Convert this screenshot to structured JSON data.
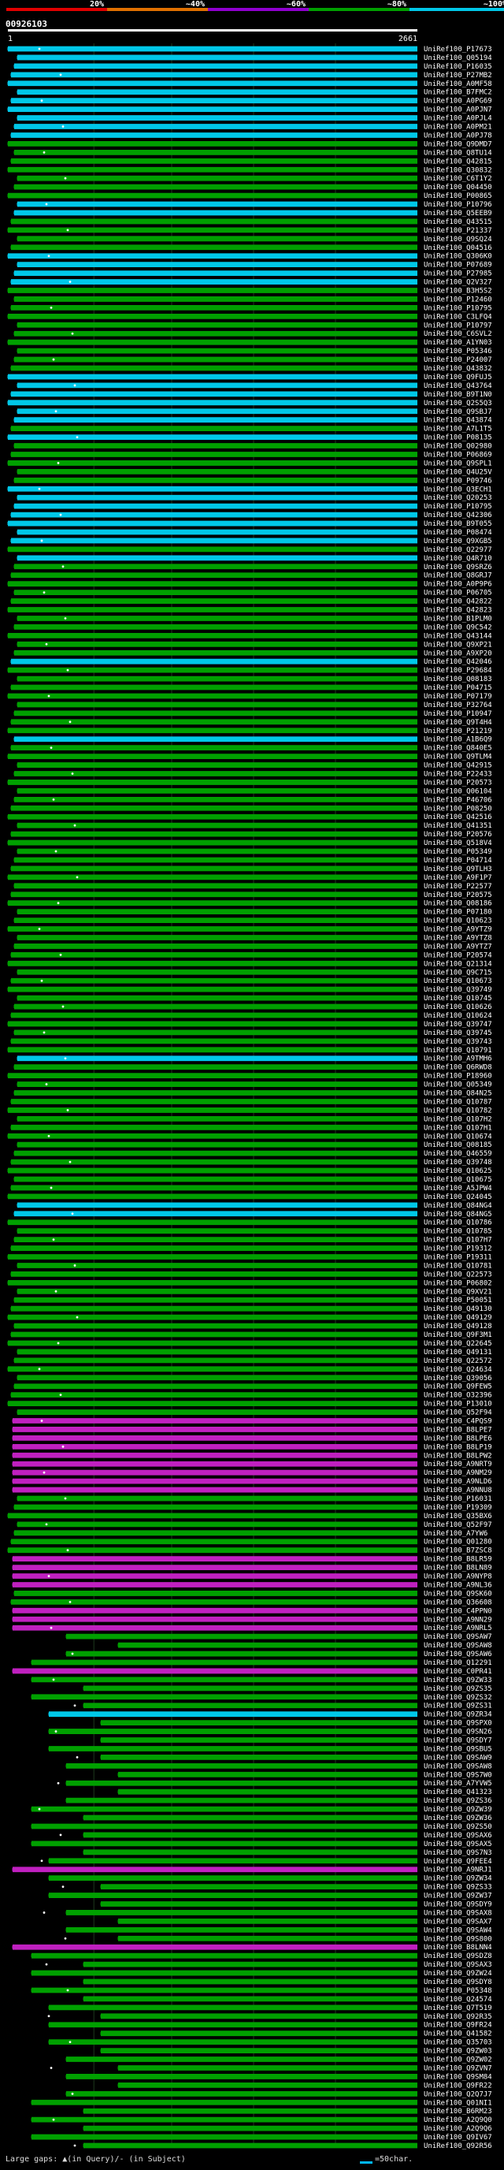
{
  "title": "00926103",
  "legend": {
    "labels": [
      "20%",
      "~40%",
      "~60%",
      "~80%",
      "~100%"
    ],
    "colors": [
      "#e00000",
      "#e07000",
      "#9000d0",
      "#00a000",
      "#00c8e8"
    ]
  },
  "ruler": {
    "start": "1",
    "end": "2661"
  },
  "footer": {
    "gaps_text": "Large gaps: ▲(in Query)/- (in Subject)",
    "scale_text": "=50char."
  },
  "chart_data": {
    "type": "alignment-overview",
    "title": "00926103",
    "query_length": 2661,
    "identity_colors": {
      "green": "#00a000",
      "cyan": "#00c8e8",
      "magenta": "#c020c0"
    },
    "hits": [
      {
        "id": "UniRef100_P17673",
        "color": "cyan"
      },
      {
        "id": "UniRef100_Q05194",
        "color": "cyan"
      },
      {
        "id": "UniRef100_P16035",
        "color": "cyan"
      },
      {
        "id": "UniRef100_P27MB2",
        "color": "cyan"
      },
      {
        "id": "UniRef100_A0MF58",
        "color": "cyan"
      },
      {
        "id": "UniRef100_B7FMC2",
        "color": "cyan"
      },
      {
        "id": "UniRef100_A0PG69",
        "color": "cyan"
      },
      {
        "id": "UniRef100_A0PJN7",
        "color": "cyan"
      },
      {
        "id": "UniRef100_A0PJL4",
        "color": "cyan"
      },
      {
        "id": "UniRef100_A0PM21",
        "color": "cyan"
      },
      {
        "id": "UniRef100_A0PJ78",
        "color": "cyan"
      },
      {
        "id": "UniRef100_Q9DMD7",
        "color": "green"
      },
      {
        "id": "UniRef100_Q8TU14",
        "color": "green"
      },
      {
        "id": "UniRef100_Q42815",
        "color": "green"
      },
      {
        "id": "UniRef100_Q30832",
        "color": "green"
      },
      {
        "id": "UniRef100_C6T1Y2",
        "color": "green"
      },
      {
        "id": "UniRef100_Q04450",
        "color": "green"
      },
      {
        "id": "UniRef100_P00865",
        "color": "green"
      },
      {
        "id": "UniRef100_P10796",
        "color": "cyan"
      },
      {
        "id": "UniRef100_Q5EEB9",
        "color": "cyan"
      },
      {
        "id": "UniRef100_Q43515",
        "color": "green"
      },
      {
        "id": "UniRef100_P21337",
        "color": "green"
      },
      {
        "id": "UniRef100_Q9SQ24",
        "color": "green"
      },
      {
        "id": "UniRef100_Q04516",
        "color": "green"
      },
      {
        "id": "UniRef100_Q306K0",
        "color": "cyan"
      },
      {
        "id": "UniRef100_P07689",
        "color": "cyan"
      },
      {
        "id": "UniRef100_P27985",
        "color": "cyan"
      },
      {
        "id": "UniRef100_Q2V327",
        "color": "cyan"
      },
      {
        "id": "UniRef100_B3H5S2",
        "color": "green"
      },
      {
        "id": "UniRef100_P12460",
        "color": "green"
      },
      {
        "id": "UniRef100_P10795",
        "color": "green"
      },
      {
        "id": "UniRef100_C3LFQ4",
        "color": "green"
      },
      {
        "id": "UniRef100_P10797",
        "color": "green"
      },
      {
        "id": "UniRef100_C6SVL2",
        "color": "green"
      },
      {
        "id": "UniRef100_A1YN03",
        "color": "green"
      },
      {
        "id": "UniRef100_P05346",
        "color": "green"
      },
      {
        "id": "UniRef100_P24007",
        "color": "green"
      },
      {
        "id": "UniRef100_Q43832",
        "color": "green"
      },
      {
        "id": "UniRef100_Q9FUJ5",
        "color": "cyan"
      },
      {
        "id": "UniRef100_Q43764",
        "color": "cyan"
      },
      {
        "id": "UniRef100_B9T1N0",
        "color": "cyan"
      },
      {
        "id": "UniRef100_Q2S5Q3",
        "color": "cyan"
      },
      {
        "id": "UniRef100_Q9SBJ7",
        "color": "cyan"
      },
      {
        "id": "UniRef100_Q43874",
        "color": "cyan"
      },
      {
        "id": "UniRef100_A7L1T5",
        "color": "green"
      },
      {
        "id": "UniRef100_P08135",
        "color": "cyan"
      },
      {
        "id": "UniRef100_Q02980",
        "color": "green"
      },
      {
        "id": "UniRef100_P06869",
        "color": "green"
      },
      {
        "id": "UniRef100_Q9SPL1",
        "color": "green"
      },
      {
        "id": "UniRef100_Q4U25V",
        "color": "green"
      },
      {
        "id": "UniRef100_P09746",
        "color": "green"
      },
      {
        "id": "UniRef100_Q3ECH1",
        "color": "cyan"
      },
      {
        "id": "UniRef100_Q20253",
        "color": "cyan"
      },
      {
        "id": "UniRef100_P10795",
        "color": "cyan"
      },
      {
        "id": "UniRef100_Q42306",
        "color": "cyan"
      },
      {
        "id": "UniRef100_B9T055",
        "color": "cyan"
      },
      {
        "id": "UniRef100_P08474",
        "color": "cyan"
      },
      {
        "id": "UniRef100_Q9XGB5",
        "color": "cyan"
      },
      {
        "id": "UniRef100_Q22977",
        "color": "green"
      },
      {
        "id": "UniRef100_Q4R710",
        "color": "cyan"
      },
      {
        "id": "UniRef100_Q9SRZ6",
        "color": "green"
      },
      {
        "id": "UniRef100_Q8GRJ7",
        "color": "green"
      },
      {
        "id": "UniRef100_A0P9P6",
        "color": "green"
      },
      {
        "id": "UniRef100_P06705",
        "color": "green"
      },
      {
        "id": "UniRef100_Q42822",
        "color": "green"
      },
      {
        "id": "UniRef100_Q42823",
        "color": "green"
      },
      {
        "id": "UniRef100_B1PLM0",
        "color": "green"
      },
      {
        "id": "UniRef100_Q9C542",
        "color": "green"
      },
      {
        "id": "UniRef100_Q43144",
        "color": "green"
      },
      {
        "id": "UniRef100_Q9XP21",
        "color": "green"
      },
      {
        "id": "UniRef100_A9XP20",
        "color": "green"
      },
      {
        "id": "UniRef100_Q42046",
        "color": "cyan"
      },
      {
        "id": "UniRef100_P29684",
        "color": "green"
      },
      {
        "id": "UniRef100_Q08183",
        "color": "green"
      },
      {
        "id": "UniRef100_P04715",
        "color": "green"
      },
      {
        "id": "UniRef100_P07179",
        "color": "green"
      },
      {
        "id": "UniRef100_P32764",
        "color": "green"
      },
      {
        "id": "UniRef100_P10947",
        "color": "green"
      },
      {
        "id": "UniRef100_Q9T4H4",
        "color": "green"
      },
      {
        "id": "UniRef100_P21219",
        "color": "green"
      },
      {
        "id": "UniRef100_A1B6Q9",
        "color": "cyan"
      },
      {
        "id": "UniRef100_Q840E5",
        "color": "green"
      },
      {
        "id": "UniRef100_Q9TLM4",
        "color": "green"
      },
      {
        "id": "UniRef100_Q42915",
        "color": "green"
      },
      {
        "id": "UniRef100_P22433",
        "color": "green"
      },
      {
        "id": "UniRef100_P20573",
        "color": "green"
      },
      {
        "id": "UniRef100_Q06104",
        "color": "green"
      },
      {
        "id": "UniRef100_P46706",
        "color": "green"
      },
      {
        "id": "UniRef100_P08250",
        "color": "green"
      },
      {
        "id": "UniRef100_Q42516",
        "color": "green"
      },
      {
        "id": "UniRef100_Q41351",
        "color": "green"
      },
      {
        "id": "UniRef100_P20576",
        "color": "green"
      },
      {
        "id": "UniRef100_Q518V4",
        "color": "green"
      },
      {
        "id": "UniRef100_P05349",
        "color": "green"
      },
      {
        "id": "UniRef100_P04714",
        "color": "green"
      },
      {
        "id": "UniRef100_Q9TLH3",
        "color": "green"
      },
      {
        "id": "UniRef100_A9F1P7",
        "color": "green"
      },
      {
        "id": "UniRef100_P22577",
        "color": "green"
      },
      {
        "id": "UniRef100_P20575",
        "color": "green"
      },
      {
        "id": "UniRef100_Q08186",
        "color": "green"
      },
      {
        "id": "UniRef100_P07180",
        "color": "green"
      },
      {
        "id": "UniRef100_Q10623",
        "color": "green"
      },
      {
        "id": "UniRef100_A9YTZ9",
        "color": "green"
      },
      {
        "id": "UniRef100_A9YTZ8",
        "color": "green"
      },
      {
        "id": "UniRef100_A9YTZ7",
        "color": "green"
      },
      {
        "id": "UniRef100_P20574",
        "color": "green"
      },
      {
        "id": "UniRef100_Q21314",
        "color": "green"
      },
      {
        "id": "UniRef100_Q9C715",
        "color": "green"
      },
      {
        "id": "UniRef100_Q10673",
        "color": "green"
      },
      {
        "id": "UniRef100_Q39749",
        "color": "green"
      },
      {
        "id": "UniRef100_Q10745",
        "color": "green"
      },
      {
        "id": "UniRef100_Q10626",
        "color": "green"
      },
      {
        "id": "UniRef100_Q10624",
        "color": "green"
      },
      {
        "id": "UniRef100_Q39747",
        "color": "green"
      },
      {
        "id": "UniRef100_Q39745",
        "color": "green"
      },
      {
        "id": "UniRef100_Q39743",
        "color": "green"
      },
      {
        "id": "UniRef100_Q10791",
        "color": "green"
      },
      {
        "id": "UniRef100_A9TMH6",
        "color": "cyan"
      },
      {
        "id": "UniRef100_Q6RWD8",
        "color": "green"
      },
      {
        "id": "UniRef100_P18960",
        "color": "green"
      },
      {
        "id": "UniRef100_Q05349",
        "color": "green"
      },
      {
        "id": "UniRef100_Q84N25",
        "color": "green"
      },
      {
        "id": "UniRef100_Q10787",
        "color": "green"
      },
      {
        "id": "UniRef100_Q10782",
        "color": "green"
      },
      {
        "id": "UniRef100_Q107H2",
        "color": "green"
      },
      {
        "id": "UniRef100_Q107H1",
        "color": "green"
      },
      {
        "id": "UniRef100_Q10674",
        "color": "green"
      },
      {
        "id": "UniRef100_Q08185",
        "color": "green"
      },
      {
        "id": "UniRef100_Q46559",
        "color": "green"
      },
      {
        "id": "UniRef100_Q39748",
        "color": "green"
      },
      {
        "id": "UniRef100_Q10625",
        "color": "green"
      },
      {
        "id": "UniRef100_Q10675",
        "color": "green"
      },
      {
        "id": "UniRef100_A5JPW4",
        "color": "green"
      },
      {
        "id": "UniRef100_Q24045",
        "color": "green"
      },
      {
        "id": "UniRef100_Q84NG4",
        "color": "cyan"
      },
      {
        "id": "UniRef100_Q84NG5",
        "color": "cyan"
      },
      {
        "id": "UniRef100_Q10786",
        "color": "green"
      },
      {
        "id": "UniRef100_Q10785",
        "color": "green"
      },
      {
        "id": "UniRef100_Q107H7",
        "color": "green"
      },
      {
        "id": "UniRef100_P19312",
        "color": "green"
      },
      {
        "id": "UniRef100_P19311",
        "color": "green"
      },
      {
        "id": "UniRef100_Q10781",
        "color": "green"
      },
      {
        "id": "UniRef100_Q22573",
        "color": "green"
      },
      {
        "id": "UniRef100_P06802",
        "color": "green"
      },
      {
        "id": "UniRef100_Q9XV21",
        "color": "green"
      },
      {
        "id": "UniRef100_P50051",
        "color": "green"
      },
      {
        "id": "UniRef100_Q49130",
        "color": "green"
      },
      {
        "id": "UniRef100_Q49129",
        "color": "green"
      },
      {
        "id": "UniRef100_Q49128",
        "color": "green"
      },
      {
        "id": "UniRef100_Q9F3M1",
        "color": "green"
      },
      {
        "id": "UniRef100_Q22645",
        "color": "green"
      },
      {
        "id": "UniRef100_Q49131",
        "color": "green"
      },
      {
        "id": "UniRef100_Q22572",
        "color": "green"
      },
      {
        "id": "UniRef100_Q24634",
        "color": "green"
      },
      {
        "id": "UniRef100_Q39056",
        "color": "green"
      },
      {
        "id": "UniRef100_Q9FEW5",
        "color": "green"
      },
      {
        "id": "UniRef100_O32396",
        "color": "green"
      },
      {
        "id": "UniRef100_P13010",
        "color": "green"
      },
      {
        "id": "UniRef100_Q52F94",
        "color": "green"
      },
      {
        "id": "UniRef100_C4PQS9",
        "color": "magenta"
      },
      {
        "id": "UniRef100_B8LPE7",
        "color": "magenta"
      },
      {
        "id": "UniRef100_B8LPE6",
        "color": "magenta"
      },
      {
        "id": "UniRef100_B8LP19",
        "color": "magenta"
      },
      {
        "id": "UniRef100_B8LPW2",
        "color": "magenta"
      },
      {
        "id": "UniRef100_A9NRT9",
        "color": "magenta"
      },
      {
        "id": "UniRef100_A9NM29",
        "color": "magenta"
      },
      {
        "id": "UniRef100_A9NLD6",
        "color": "magenta"
      },
      {
        "id": "UniRef100_A9NNU8",
        "color": "magenta"
      },
      {
        "id": "UniRef100_P16031",
        "color": "green"
      },
      {
        "id": "UniRef100_P19309",
        "color": "green"
      },
      {
        "id": "UniRef100_Q35BX6",
        "color": "green"
      },
      {
        "id": "UniRef100_Q52F97",
        "color": "green"
      },
      {
        "id": "UniRef100_A7YW6",
        "color": "green"
      },
      {
        "id": "UniRef100_Q01280",
        "color": "green"
      },
      {
        "id": "UniRef100_B7ZSC8",
        "color": "green"
      },
      {
        "id": "UniRef100_B8LR59",
        "color": "magenta"
      },
      {
        "id": "UniRef100_B8LN89",
        "color": "magenta"
      },
      {
        "id": "UniRef100_A9NYP8",
        "color": "magenta"
      },
      {
        "id": "UniRef100_A9NL36",
        "color": "magenta"
      },
      {
        "id": "UniRef100_Q9SK60",
        "color": "green"
      },
      {
        "id": "UniRef100_Q36608",
        "color": "green"
      },
      {
        "id": "UniRef100_C4PPN0",
        "color": "magenta"
      },
      {
        "id": "UniRef100_A9NN29",
        "color": "magenta"
      },
      {
        "id": "UniRef100_A9NRL5",
        "color": "magenta"
      },
      {
        "id": "UniRef100_Q9SAW7",
        "color": "green"
      },
      {
        "id": "UniRef100_Q9SAW8",
        "color": "green"
      },
      {
        "id": "UniRef100_Q9SAW6",
        "color": "green"
      },
      {
        "id": "UniRef100_Q12291",
        "color": "green"
      },
      {
        "id": "UniRef100_C0PR41",
        "color": "magenta"
      },
      {
        "id": "UniRef100_Q9ZW33",
        "color": "green"
      },
      {
        "id": "UniRef100_Q9ZS35",
        "color": "green"
      },
      {
        "id": "UniRef100_Q9ZS32",
        "color": "green"
      },
      {
        "id": "UniRef100_Q9ZS31",
        "color": "green"
      },
      {
        "id": "UniRef100_Q9ZR34",
        "color": "cyan"
      },
      {
        "id": "UniRef100_Q9SPX0",
        "color": "green"
      },
      {
        "id": "UniRef100_Q9SN26",
        "color": "green"
      },
      {
        "id": "UniRef100_Q9SDY7",
        "color": "green"
      },
      {
        "id": "UniRef100_Q9SBU5",
        "color": "green"
      },
      {
        "id": "UniRef100_Q9SAW9",
        "color": "green"
      },
      {
        "id": "UniRef100_Q9SAW8",
        "color": "green"
      },
      {
        "id": "UniRef100_Q9S7W0",
        "color": "green"
      },
      {
        "id": "UniRef100_A7YVW5",
        "color": "green"
      },
      {
        "id": "UniRef100_Q41323",
        "color": "green"
      },
      {
        "id": "UniRef100_Q9ZS36",
        "color": "green"
      },
      {
        "id": "UniRef100_Q9ZW39",
        "color": "green"
      },
      {
        "id": "UniRef100_Q9ZW36",
        "color": "green"
      },
      {
        "id": "UniRef100_Q9ZS50",
        "color": "green"
      },
      {
        "id": "UniRef100_Q9SAX6",
        "color": "green"
      },
      {
        "id": "UniRef100_Q9SAX5",
        "color": "green"
      },
      {
        "id": "UniRef100_Q9S7N3",
        "color": "green"
      },
      {
        "id": "UniRef100_Q9FEE4",
        "color": "green"
      },
      {
        "id": "UniRef100_A9NRJ1",
        "color": "magenta"
      },
      {
        "id": "UniRef100_Q9ZW34",
        "color": "green"
      },
      {
        "id": "UniRef100_Q9ZS33",
        "color": "green"
      },
      {
        "id": "UniRef100_Q9ZW37",
        "color": "green"
      },
      {
        "id": "UniRef100_Q9SDY9",
        "color": "green"
      },
      {
        "id": "UniRef100_Q9SAX8",
        "color": "green"
      },
      {
        "id": "UniRef100_Q9SAX7",
        "color": "green"
      },
      {
        "id": "UniRef100_Q9SAW4",
        "color": "green"
      },
      {
        "id": "UniRef100_Q9S800",
        "color": "green"
      },
      {
        "id": "UniRef100_B8LNN4",
        "color": "magenta"
      },
      {
        "id": "UniRef100_Q9SDZ8",
        "color": "green"
      },
      {
        "id": "UniRef100_Q9SAX3",
        "color": "green"
      },
      {
        "id": "UniRef100_Q9ZW24",
        "color": "green"
      },
      {
        "id": "UniRef100_Q9SDY8",
        "color": "green"
      },
      {
        "id": "UniRef100_P05348",
        "color": "green"
      },
      {
        "id": "UniRef100_Q24574",
        "color": "green"
      },
      {
        "id": "UniRef100_Q7T519",
        "color": "green"
      },
      {
        "id": "UniRef100_Q92R35",
        "color": "green"
      },
      {
        "id": "UniRef100_Q9FR24",
        "color": "green"
      },
      {
        "id": "UniRef100_Q41582",
        "color": "green"
      },
      {
        "id": "UniRef100_Q35703",
        "color": "green"
      },
      {
        "id": "UniRef100_Q9ZW03",
        "color": "green"
      },
      {
        "id": "UniRef100_Q9ZW02",
        "color": "green"
      },
      {
        "id": "UniRef100_Q9ZVN7",
        "color": "green"
      },
      {
        "id": "UniRef100_Q9SM84",
        "color": "green"
      },
      {
        "id": "UniRef100_Q9FR22",
        "color": "green"
      },
      {
        "id": "UniRef100_Q2Q7J7",
        "color": "green"
      },
      {
        "id": "UniRef100_Q01NI1",
        "color": "green"
      },
      {
        "id": "UniRef100_B6RM23",
        "color": "green"
      },
      {
        "id": "UniRef100_A2Q9Q0",
        "color": "green"
      },
      {
        "id": "UniRef100_A2Q9Q6",
        "color": "green"
      },
      {
        "id": "UniRef100_Q9IV67",
        "color": "green"
      },
      {
        "id": "UniRef100_Q92R56",
        "color": "green"
      }
    ]
  }
}
